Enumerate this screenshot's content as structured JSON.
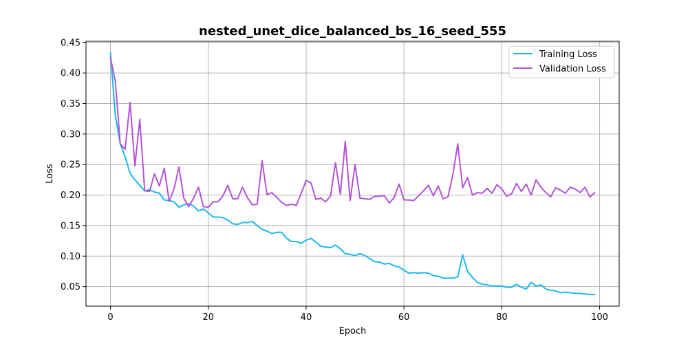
{
  "chart_data": {
    "type": "line",
    "title": "nested_unet_dice_balanced_bs_16_seed_555",
    "xlabel": "Epoch",
    "ylabel": "Loss",
    "xlim": [
      -5,
      104
    ],
    "ylim": [
      0.018,
      0.452
    ],
    "xticks": [
      0,
      20,
      40,
      60,
      80,
      100
    ],
    "yticks": [
      0.05,
      0.1,
      0.15,
      0.2,
      0.25,
      0.3,
      0.35,
      0.4,
      0.45
    ],
    "grid": true,
    "legend_position": "top-right",
    "series": [
      {
        "name": "Training Loss",
        "color": "#1ab8f0",
        "values": [
          0.433,
          0.33,
          0.284,
          0.263,
          0.236,
          0.225,
          0.216,
          0.207,
          0.209,
          0.205,
          0.203,
          0.192,
          0.191,
          0.189,
          0.18,
          0.184,
          0.186,
          0.182,
          0.174,
          0.177,
          0.171,
          0.164,
          0.164,
          0.163,
          0.159,
          0.153,
          0.152,
          0.155,
          0.155,
          0.157,
          0.15,
          0.144,
          0.141,
          0.137,
          0.139,
          0.139,
          0.129,
          0.124,
          0.124,
          0.121,
          0.126,
          0.129,
          0.123,
          0.116,
          0.115,
          0.114,
          0.118,
          0.112,
          0.104,
          0.103,
          0.101,
          0.104,
          0.101,
          0.096,
          0.091,
          0.09,
          0.087,
          0.088,
          0.084,
          0.082,
          0.077,
          0.072,
          0.073,
          0.072,
          0.073,
          0.072,
          0.068,
          0.067,
          0.064,
          0.064,
          0.064,
          0.066,
          0.102,
          0.075,
          0.065,
          0.057,
          0.054,
          0.053,
          0.051,
          0.051,
          0.051,
          0.049,
          0.049,
          0.054,
          0.049,
          0.046,
          0.057,
          0.051,
          0.053,
          0.046,
          0.044,
          0.043,
          0.04,
          0.041,
          0.04,
          0.039,
          0.039,
          0.038,
          0.037,
          0.037
        ]
      },
      {
        "name": "Validation Loss",
        "color": "#b453d6",
        "values": [
          0.425,
          0.386,
          0.284,
          0.275,
          0.352,
          0.248,
          0.324,
          0.207,
          0.206,
          0.235,
          0.215,
          0.244,
          0.19,
          0.21,
          0.246,
          0.195,
          0.181,
          0.195,
          0.213,
          0.181,
          0.18,
          0.189,
          0.189,
          0.199,
          0.216,
          0.194,
          0.194,
          0.213,
          0.196,
          0.184,
          0.185,
          0.256,
          0.201,
          0.204,
          0.196,
          0.188,
          0.183,
          0.185,
          0.183,
          0.203,
          0.224,
          0.22,
          0.193,
          0.195,
          0.189,
          0.199,
          0.253,
          0.201,
          0.288,
          0.191,
          0.25,
          0.195,
          0.194,
          0.193,
          0.198,
          0.198,
          0.199,
          0.187,
          0.196,
          0.218,
          0.192,
          0.192,
          0.191,
          0.199,
          0.207,
          0.216,
          0.199,
          0.215,
          0.194,
          0.197,
          0.234,
          0.284,
          0.212,
          0.229,
          0.2,
          0.204,
          0.203,
          0.211,
          0.203,
          0.217,
          0.21,
          0.198,
          0.202,
          0.219,
          0.206,
          0.218,
          0.2,
          0.225,
          0.213,
          0.204,
          0.197,
          0.212,
          0.208,
          0.203,
          0.213,
          0.21,
          0.204,
          0.213,
          0.197,
          0.204
        ]
      }
    ]
  }
}
